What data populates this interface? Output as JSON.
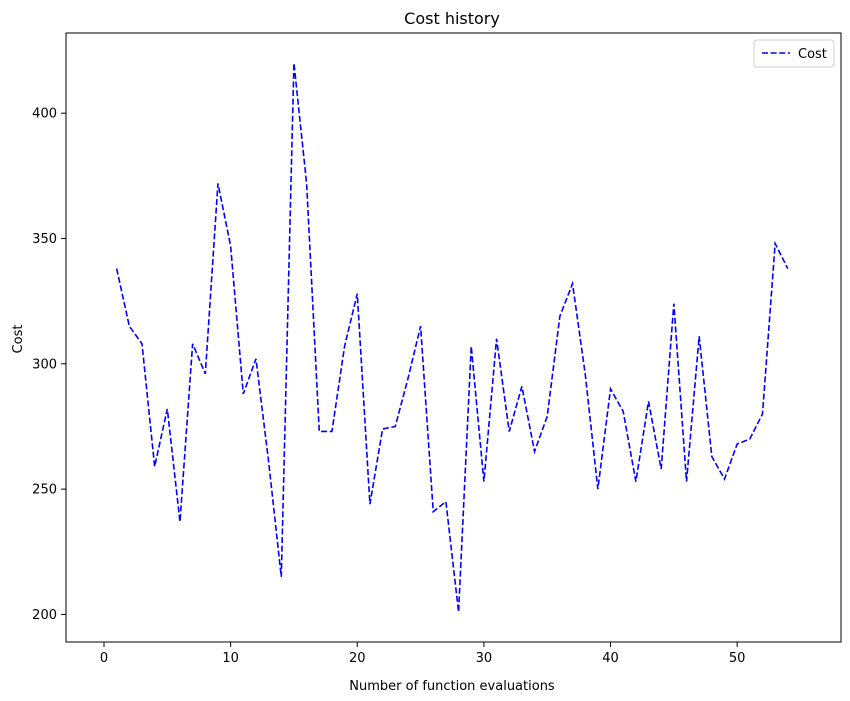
{
  "chart_data": {
    "type": "line",
    "title": "Cost history",
    "xlabel": "Number of function evaluations",
    "ylabel": "Cost",
    "xlim": [
      -3.0,
      58.2
    ],
    "ylim": [
      189.0,
      432.0
    ],
    "xticks": [
      0,
      10,
      20,
      30,
      40,
      50
    ],
    "yticks": [
      200,
      250,
      300,
      350,
      400
    ],
    "grid": false,
    "legend_position": "top-right",
    "series": [
      {
        "name": "Cost",
        "color": "#0000ff",
        "line_style": "dashed",
        "x": [
          1,
          2,
          3,
          4,
          5,
          6,
          7,
          8,
          9,
          10,
          11,
          12,
          13,
          14,
          15,
          16,
          17,
          18,
          19,
          20,
          21,
          22,
          23,
          24,
          25,
          26,
          27,
          28,
          29,
          30,
          31,
          32,
          33,
          34,
          35,
          36,
          37,
          38,
          39,
          40,
          41,
          42,
          43,
          44,
          45,
          46,
          47,
          48,
          49,
          50,
          51,
          52,
          53,
          54
        ],
        "y": [
          338,
          315,
          308,
          259,
          282,
          237,
          308,
          296,
          372,
          347,
          288,
          302,
          261,
          215,
          420,
          372,
          273,
          273,
          307,
          328,
          244,
          274,
          275,
          294,
          315,
          241,
          245,
          201,
          307,
          253,
          310,
          273,
          291,
          265,
          279,
          319,
          332,
          296,
          250,
          290,
          281,
          253,
          285,
          258,
          324,
          253,
          311,
          263,
          254,
          268,
          270,
          280,
          348,
          338
        ]
      }
    ]
  }
}
